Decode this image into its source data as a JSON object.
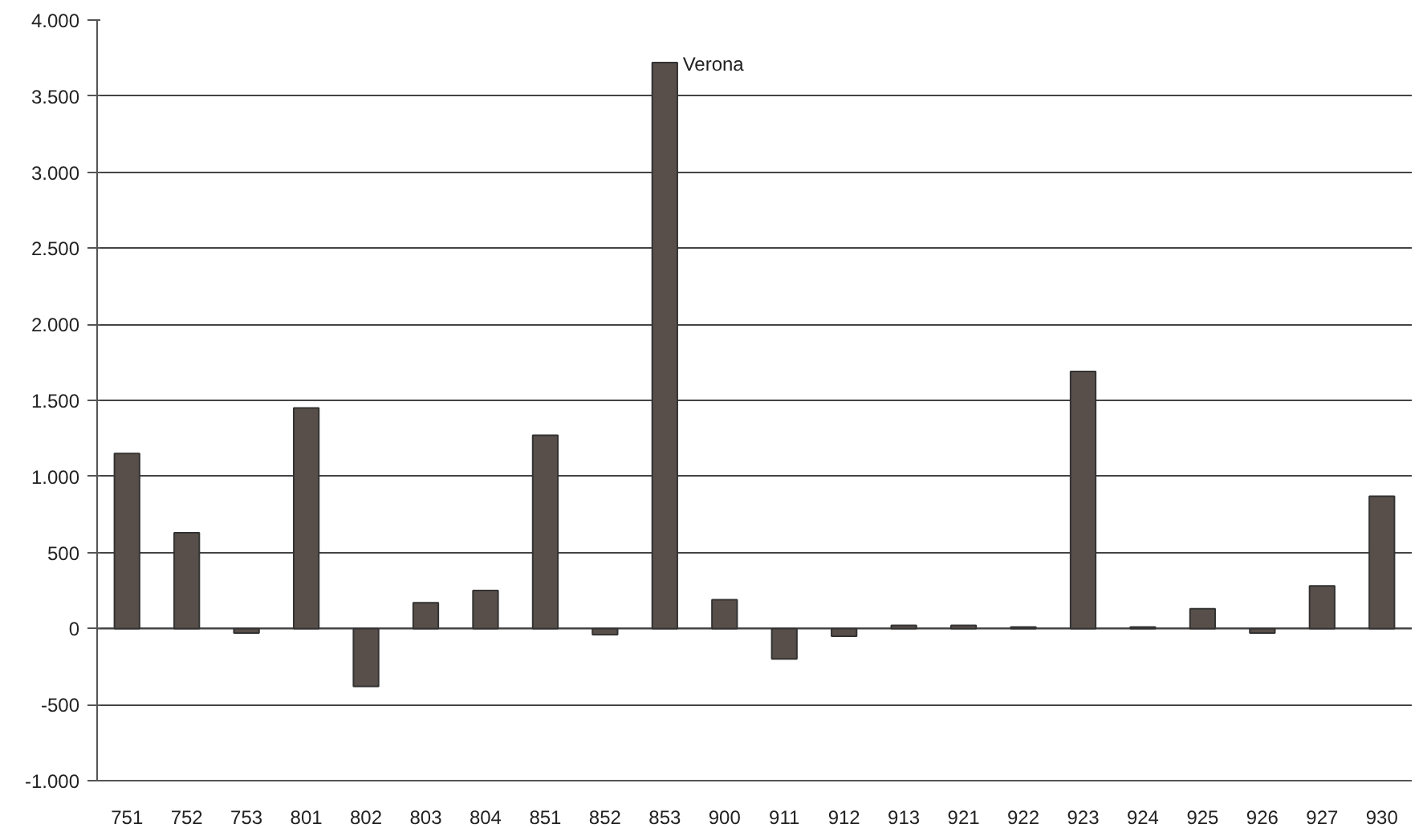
{
  "chart_data": {
    "type": "bar",
    "categories": [
      "751",
      "752",
      "753",
      "801",
      "802",
      "803",
      "804",
      "851",
      "852",
      "853",
      "900",
      "911",
      "912",
      "913",
      "921",
      "922",
      "923",
      "924",
      "925",
      "926",
      "927",
      "930"
    ],
    "values": [
      1150,
      630,
      -30,
      1450,
      -380,
      170,
      250,
      1270,
      -40,
      3720,
      190,
      -200,
      -50,
      20,
      20,
      10,
      1690,
      10,
      130,
      -30,
      280,
      870
    ],
    "color": "#584f4a",
    "ylim": [
      -1000,
      4000
    ],
    "yticks": [
      {
        "value": -1000,
        "label": "-1.000"
      },
      {
        "value": -500,
        "label": "-500"
      },
      {
        "value": 0,
        "label": "0"
      },
      {
        "value": 500,
        "label": "500"
      },
      {
        "value": 1000,
        "label": "1.000"
      },
      {
        "value": 1500,
        "label": "1.500"
      },
      {
        "value": 2000,
        "label": "2.000"
      },
      {
        "value": 2500,
        "label": "2.500"
      },
      {
        "value": 3000,
        "label": "3.000"
      },
      {
        "value": 3500,
        "label": "3.500"
      },
      {
        "value": 4000,
        "label": "4.000"
      }
    ],
    "grid": "y",
    "annotations": [
      {
        "text": "Verona",
        "x": "853",
        "y": 3720
      }
    ]
  }
}
